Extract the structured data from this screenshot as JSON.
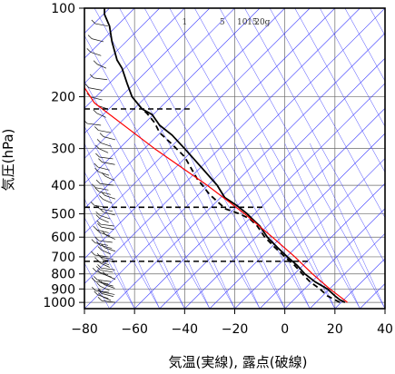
{
  "chart_data": {
    "type": "line",
    "title": "",
    "xlabel": "気温(実線), 露点(破線)",
    "ylabel": "気圧(hPa)",
    "xlim": [
      -80,
      40
    ],
    "ylim_pressure": [
      1050,
      100
    ],
    "y_scale": "log",
    "x_ticks": [
      -80,
      -60,
      -40,
      -20,
      0,
      20,
      40
    ],
    "x_tick_labels": [
      "−80",
      "−60",
      "−40",
      "−20",
      "0",
      "20",
      "40"
    ],
    "y_ticks": [
      100,
      200,
      300,
      400,
      500,
      600,
      700,
      800,
      900,
      1000
    ],
    "y_tick_labels": [
      "100",
      "200",
      "300",
      "400",
      "500",
      "600",
      "700",
      "800",
      "900",
      "1000"
    ],
    "grid": true,
    "mixing_ratio_labels": [
      "1",
      "5",
      "10",
      "15",
      "20g"
    ],
    "colors": {
      "temperature": "#000000",
      "dewpoint": "#000000",
      "parcel": "#ff0000",
      "isotherm": "#3a3aff",
      "adiabat": "#4848ff",
      "grid": "#6a6a6a"
    },
    "series": [
      {
        "style": "solid",
        "color": "#000000",
        "points": [
          [
            24,
            1000
          ],
          [
            22,
            980
          ],
          [
            20,
            950
          ],
          [
            17,
            900
          ],
          [
            12,
            850
          ],
          [
            8,
            800
          ],
          [
            5,
            750
          ],
          [
            1,
            700
          ],
          [
            -3,
            650
          ],
          [
            -7,
            600
          ],
          [
            -10,
            550
          ],
          [
            -13,
            520
          ],
          [
            -15,
            500
          ],
          [
            -19,
            470
          ],
          [
            -24,
            440
          ],
          [
            -27,
            400
          ],
          [
            -33,
            350
          ],
          [
            -40,
            300
          ],
          [
            -45,
            270
          ],
          [
            -50,
            250
          ],
          [
            -53,
            230
          ],
          [
            -57,
            220
          ],
          [
            -61,
            200
          ],
          [
            -63,
            180
          ],
          [
            -65,
            160
          ],
          [
            -67,
            150
          ],
          [
            -69,
            130
          ],
          [
            -70,
            115
          ],
          [
            -72,
            105
          ],
          [
            -72,
            100
          ]
        ]
      },
      {
        "style": "dashed",
        "color": "#000000",
        "points": [
          [
            22,
            1000
          ],
          [
            20,
            980
          ],
          [
            17,
            950
          ],
          [
            14,
            900
          ],
          [
            10,
            850
          ],
          [
            7,
            800
          ],
          [
            4,
            750
          ],
          [
            0,
            700
          ],
          [
            -4,
            650
          ],
          [
            -8,
            600
          ],
          [
            -11,
            550
          ],
          [
            -14,
            520
          ],
          [
            -18,
            500
          ],
          [
            -24,
            480
          ],
          [
            -25,
            470
          ],
          [
            -30,
            430
          ],
          [
            -35,
            380
          ],
          [
            -40,
            320
          ],
          [
            -45,
            290
          ],
          [
            -50,
            265
          ],
          [
            -52,
            245
          ],
          [
            -55,
            228
          ],
          [
            -57,
            220
          ]
        ]
      },
      {
        "style": "solid",
        "color": "#ff0000",
        "points": [
          [
            25,
            1000
          ],
          [
            18,
            900
          ],
          [
            11,
            800
          ],
          [
            4,
            700
          ],
          [
            -5,
            600
          ],
          [
            -16,
            500
          ],
          [
            -31,
            400
          ],
          [
            -52,
            300
          ],
          [
            -76,
            210
          ],
          [
            -80,
            186
          ]
        ]
      }
    ],
    "dewpoint_markers": [
      {
        "pressure": 220,
        "x_from": -80,
        "x_to": -38
      },
      {
        "pressure": 475,
        "x_from": -80,
        "x_to": -8
      },
      {
        "pressure": 725,
        "x_from": -80,
        "x_to": 10
      }
    ],
    "wind_barbs": "present along left edge"
  }
}
